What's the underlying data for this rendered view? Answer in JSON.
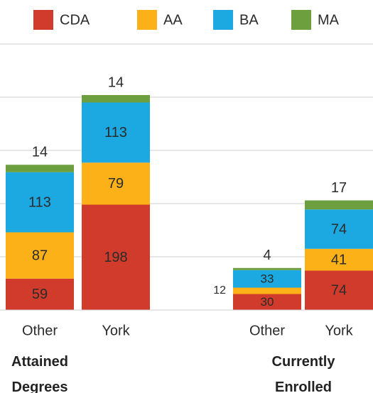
{
  "chart_data": {
    "type": "stacked_bar",
    "categories": [
      "Other",
      "York",
      "Other",
      "York"
    ],
    "groups": [
      "Attained Degrees",
      "Currently Enrolled"
    ],
    "series": [
      {
        "name": "CDA",
        "color": "#d13b2b",
        "values": [
          59,
          198,
          30,
          74
        ]
      },
      {
        "name": "AA",
        "color": "#fbb117",
        "values": [
          87,
          79,
          12,
          41
        ]
      },
      {
        "name": "BA",
        "color": "#1ca8e0",
        "values": [
          113,
          113,
          33,
          74
        ]
      },
      {
        "name": "MA",
        "color": "#6e9f3f",
        "values": [
          14,
          14,
          4,
          17
        ]
      }
    ],
    "ylim": [
      0,
      500
    ],
    "yticks": [
      0,
      100,
      200,
      300,
      400,
      500
    ],
    "grid": true
  }
}
